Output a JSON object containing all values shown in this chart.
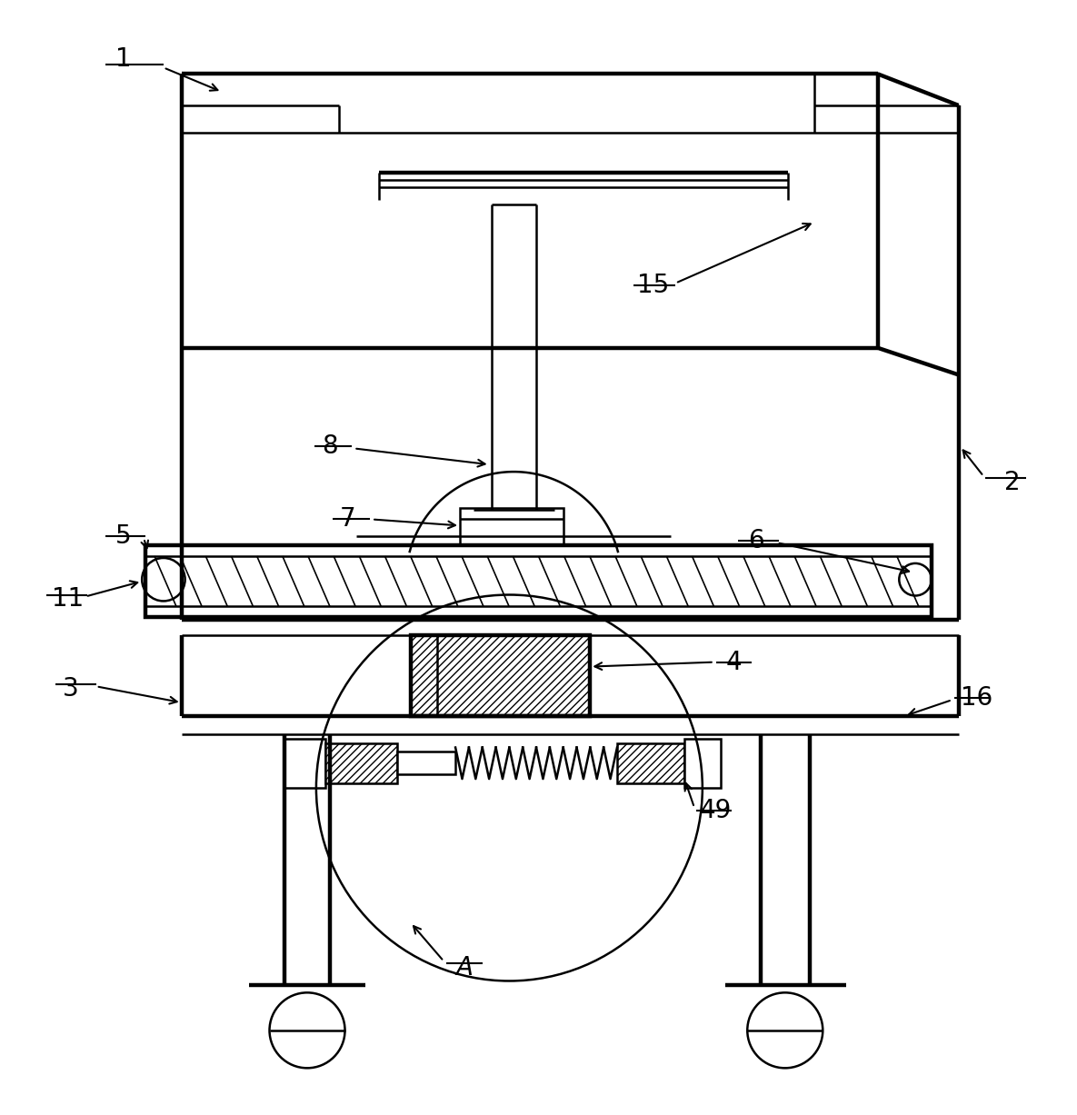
{
  "bg_color": "#ffffff",
  "figsize": [
    11.85,
    12.27
  ],
  "lw": 1.8,
  "tlw": 3.2
}
